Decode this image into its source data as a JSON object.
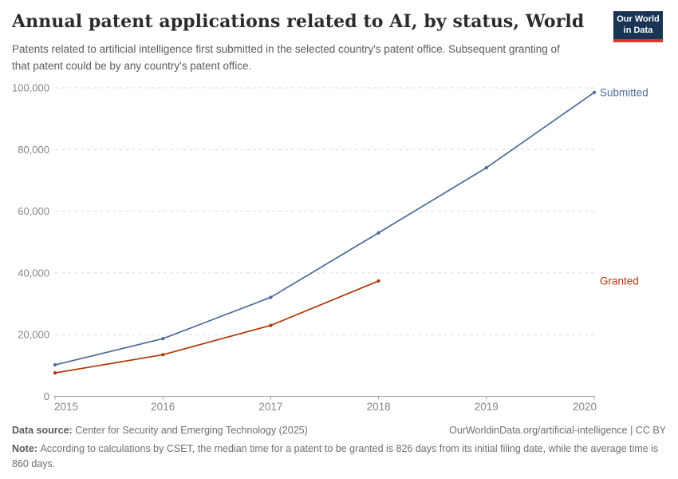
{
  "header": {
    "title": "Annual patent applications related to AI, by status, World",
    "subtitle": "Patents related to artificial intelligence first submitted in the selected country's patent office. Subsequent granting of that patent could be by any country's patent office.",
    "logo_line1": "Our World",
    "logo_line2": "in Data"
  },
  "chart_data": {
    "type": "line",
    "title": "Annual patent applications related to AI, by status, World",
    "x": [
      2015,
      2016,
      2017,
      2018,
      2019,
      2020
    ],
    "xtick_labels": [
      "2015",
      "2016",
      "2017",
      "2018",
      "2019",
      "2020"
    ],
    "series": [
      {
        "name": "Submitted",
        "color": "#4C6A9C",
        "values": [
          10200,
          18700,
          32100,
          53000,
          74100,
          98500
        ]
      },
      {
        "name": "Granted",
        "color": "#B13507",
        "values": [
          7600,
          13500,
          23000,
          37400,
          null,
          null
        ]
      }
    ],
    "ylim": [
      0,
      100000
    ],
    "ytick_interval": 20000,
    "ytick_labels": [
      "0",
      "20,000",
      "40,000",
      "60,000",
      "80,000",
      "100,000"
    ],
    "grid": "horizontal dashed",
    "legend_position": "labels at line ends (right side)"
  },
  "footer": {
    "source_label": "Data source:",
    "source_text": "Center for Security and Emerging Technology (2025)",
    "attribution": "OurWorldinData.org/artificial-intelligence | CC BY",
    "note_label": "Note:",
    "note_text": "According to calculations by CSET, the median time for a patent to be granted is 826 days from its initial filing date, while the average time is 860 days."
  },
  "colors": {
    "submitted_line": "#4C6A9C",
    "granted_line": "#B13507",
    "logo_background": "#1a3455",
    "logo_accent_bar": "#d8352d",
    "gridline": "#dcdcdc",
    "axis": "#a3a3a3",
    "tick_text": "#858585"
  }
}
